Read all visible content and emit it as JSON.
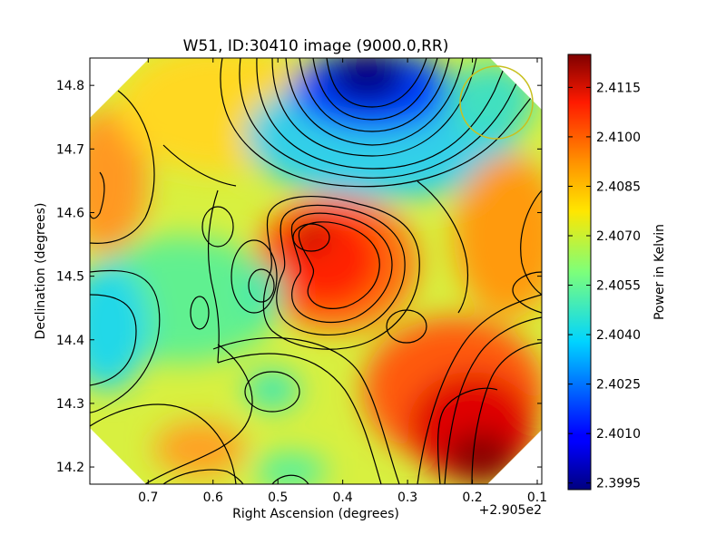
{
  "chart_data": {
    "type": "heatmap",
    "title": "W51, ID:30410 image (9000.0,RR)",
    "xlabel": "Right Ascension (degrees)",
    "ylabel": "Declination (degrees)",
    "x_offset_label": "+2.905e2",
    "x_ticks": [
      {
        "value": 0.7,
        "label": "0.7"
      },
      {
        "value": 0.6,
        "label": "0.6"
      },
      {
        "value": 0.5,
        "label": "0.5"
      },
      {
        "value": 0.4,
        "label": "0.4"
      },
      {
        "value": 0.3,
        "label": "0.3"
      },
      {
        "value": 0.2,
        "label": "0.2"
      },
      {
        "value": 0.1,
        "label": "0.1"
      }
    ],
    "y_ticks": [
      {
        "value": 14.8,
        "label": "14.8"
      },
      {
        "value": 14.7,
        "label": "14.7"
      },
      {
        "value": 14.6,
        "label": "14.6"
      },
      {
        "value": 14.5,
        "label": "14.5"
      },
      {
        "value": 14.4,
        "label": "14.4"
      },
      {
        "value": 14.3,
        "label": "14.3"
      },
      {
        "value": 14.2,
        "label": "14.2"
      }
    ],
    "xlim": [
      0.79,
      0.093
    ],
    "ylim": [
      14.173,
      14.843
    ],
    "colorbar": {
      "label": "Power in Kelvin",
      "range": [
        2.3993,
        2.4125
      ],
      "ticks": [
        {
          "value": 2.4115,
          "label": "2.4115"
        },
        {
          "value": 2.41,
          "label": "2.4100"
        },
        {
          "value": 2.4085,
          "label": "2.4085"
        },
        {
          "value": 2.407,
          "label": "2.4070"
        },
        {
          "value": 2.4055,
          "label": "2.4055"
        },
        {
          "value": 2.404,
          "label": "2.4040"
        },
        {
          "value": 2.4025,
          "label": "2.4025"
        },
        {
          "value": 2.401,
          "label": "2.4010"
        },
        {
          "value": 2.3995,
          "label": "2.3995"
        }
      ]
    },
    "features": [
      {
        "name": "cold-minimum",
        "ra": 0.34,
        "dec": 14.82,
        "value": 2.3995
      },
      {
        "name": "hot-peak-center",
        "ra": 0.44,
        "dec": 14.565,
        "value": 2.4112
      },
      {
        "name": "hot-peak-southeast",
        "ra": 0.18,
        "dec": 14.2,
        "value": 2.4122
      },
      {
        "name": "cool-west",
        "ra": 0.77,
        "dec": 14.42,
        "value": 2.4035
      },
      {
        "name": "warm-northwest",
        "ra": 0.77,
        "dec": 14.66,
        "value": 2.4095
      },
      {
        "name": "beam",
        "ra": 0.155,
        "dec": 14.77,
        "value": 0
      }
    ],
    "beam_color": "#c8c020"
  }
}
